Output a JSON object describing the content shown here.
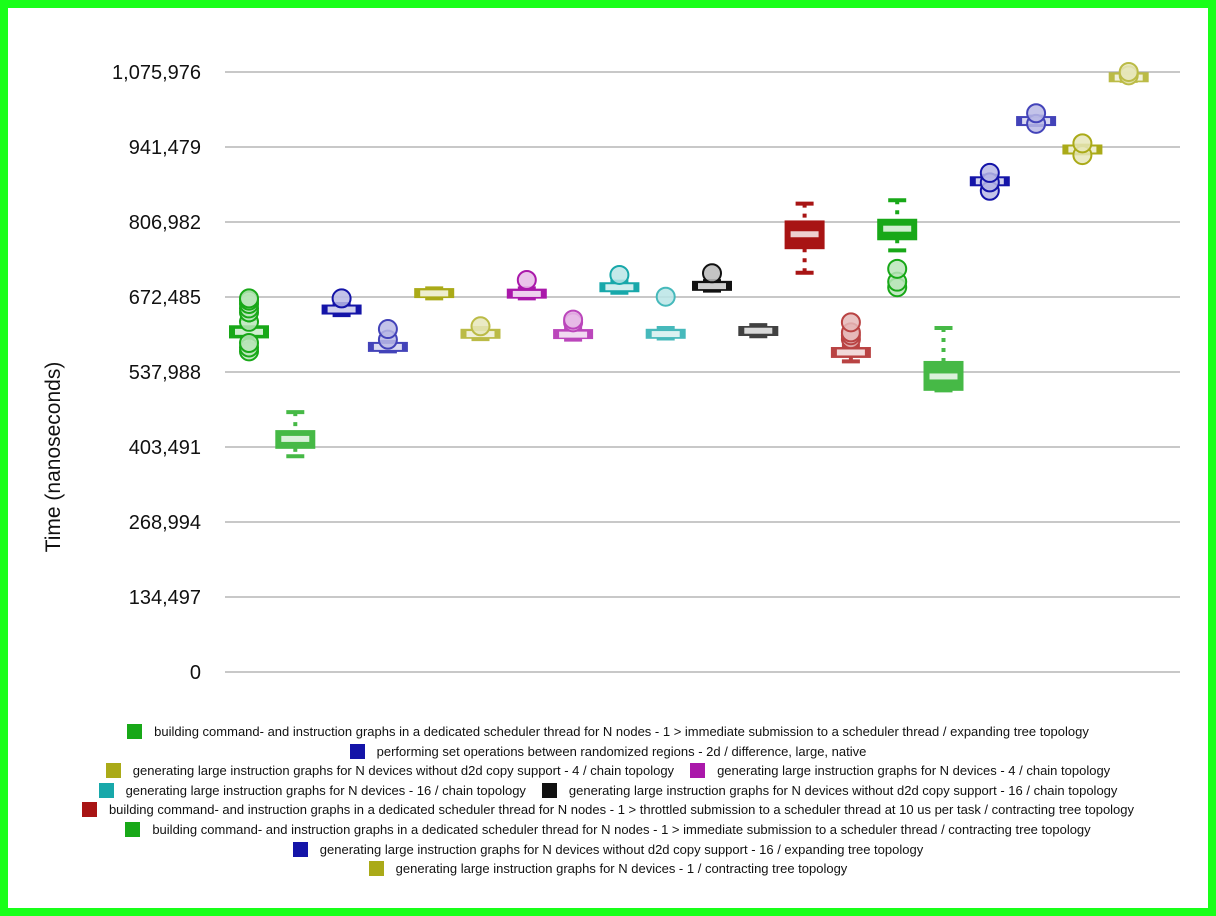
{
  "chart_data": {
    "type": "box",
    "ylabel": "Time (nanoseconds)",
    "ylim": [
      0,
      1075976
    ],
    "y_ticks": [
      {
        "value": 0,
        "label": "0"
      },
      {
        "value": 134497,
        "label": "134,497"
      },
      {
        "value": 268994,
        "label": "268,994"
      },
      {
        "value": 403491,
        "label": "403,491"
      },
      {
        "value": 537988,
        "label": "537,988"
      },
      {
        "value": 672485,
        "label": "672,485"
      },
      {
        "value": 806982,
        "label": "806,982"
      },
      {
        "value": 941479,
        "label": "941,479"
      },
      {
        "value": 1075976,
        "label": "1,075,976"
      }
    ],
    "grid": true,
    "legend_position": "bottom",
    "legend_rows": [
      [
        0
      ],
      [
        1
      ],
      [
        2,
        3
      ],
      [
        4,
        5
      ],
      [
        6
      ],
      [
        7
      ],
      [
        8
      ],
      [
        9
      ]
    ],
    "series": [
      {
        "name": "building command- and instruction graphs in a dedicated scheduler thread for N nodes - 1 > immediate submission to a scheduler thread / expanding tree topology",
        "color": "#18a818"
      },
      {
        "name": "performing set operations between randomized regions - 2d / difference, large, native",
        "color": "#1414a8"
      },
      {
        "name": "generating large instruction graphs for N devices without d2d copy support - 4 / chain topology",
        "color": "#aaaa18"
      },
      {
        "name": "generating large instruction graphs for N devices - 4 / chain topology",
        "color": "#aa18aa"
      },
      {
        "name": "generating large instruction graphs for N devices - 16 / chain topology",
        "color": "#18a8aa"
      },
      {
        "name": "generating large instruction graphs for N devices without d2d copy support - 16 / chain topology",
        "color": "#111111"
      },
      {
        "name": "building command- and instruction graphs in a dedicated scheduler thread for N nodes - 1 > throttled submission to a scheduler thread at 10 us per task / contracting tree topology",
        "color": "#a81414"
      },
      {
        "name": "building command- and instruction graphs in a dedicated scheduler thread for N nodes - 1 > immediate submission to a scheduler thread / contracting tree topology",
        "color": "#18a818"
      },
      {
        "name": "generating large instruction graphs for N devices without d2d copy support - 16 / expanding tree topology",
        "color": "#1414a8"
      },
      {
        "name": "generating large instruction graphs for N devices - 1 / contracting tree topology",
        "color": "#aaaa18"
      }
    ],
    "boxes": [
      {
        "series": 0,
        "light": false,
        "min": 588000,
        "q1": 600000,
        "median": 610000,
        "q3": 620000,
        "max": 633000,
        "outliers": [
          575000,
          582000,
          590000,
          628000,
          645000,
          652000,
          660000,
          666000,
          670000
        ]
      },
      {
        "series": 0,
        "light": true,
        "min": 387000,
        "q1": 402000,
        "median": 418000,
        "q3": 432000,
        "max": 466000,
        "outliers": []
      },
      {
        "series": 1,
        "light": false,
        "min": 640000,
        "q1": 645000,
        "median": 650000,
        "q3": 655000,
        "max": 660000,
        "outliers": [
          670000
        ]
      },
      {
        "series": 1,
        "light": true,
        "min": 575000,
        "q1": 578000,
        "median": 583000,
        "q3": 588000,
        "max": 592000,
        "outliers": [
          596000,
          615000
        ]
      },
      {
        "series": 2,
        "light": false,
        "min": 670000,
        "q1": 675000,
        "median": 679000,
        "q3": 684000,
        "max": 688000,
        "outliers": []
      },
      {
        "series": 2,
        "light": true,
        "min": 597000,
        "q1": 601000,
        "median": 606000,
        "q3": 612000,
        "max": 617000,
        "outliers": [
          620000
        ]
      },
      {
        "series": 3,
        "light": false,
        "min": 670000,
        "q1": 673000,
        "median": 678000,
        "q3": 684000,
        "max": 688000,
        "outliers": [
          703000
        ]
      },
      {
        "series": 3,
        "light": true,
        "min": 596000,
        "q1": 600000,
        "median": 605000,
        "q3": 612000,
        "max": 617000,
        "outliers": [
          627000,
          632000
        ]
      },
      {
        "series": 4,
        "light": false,
        "min": 680000,
        "q1": 684000,
        "median": 690000,
        "q3": 696000,
        "max": 700000,
        "outliers": [
          712000
        ]
      },
      {
        "series": 4,
        "light": true,
        "min": 598000,
        "q1": 601000,
        "median": 606000,
        "q3": 612000,
        "max": 617000,
        "outliers": [
          673000
        ]
      },
      {
        "series": 5,
        "light": false,
        "min": 684000,
        "q1": 688000,
        "median": 692000,
        "q3": 697000,
        "max": 701000,
        "outliers": [
          715000
        ]
      },
      {
        "series": 5,
        "light": true,
        "min": 602000,
        "q1": 606000,
        "median": 612000,
        "q3": 617000,
        "max": 622000,
        "outliers": []
      },
      {
        "series": 6,
        "light": false,
        "min": 716000,
        "q1": 760000,
        "median": 785000,
        "q3": 808000,
        "max": 840000,
        "outliers": []
      },
      {
        "series": 6,
        "light": true,
        "min": 557000,
        "q1": 565000,
        "median": 573000,
        "q3": 581000,
        "max": 585000,
        "outliers": [
          597000,
          604000,
          609000,
          627000
        ]
      },
      {
        "series": 7,
        "light": false,
        "min": 756000,
        "q1": 776000,
        "median": 795000,
        "q3": 811000,
        "max": 846000,
        "outliers": [
          690000,
          700000,
          723000
        ]
      },
      {
        "series": 7,
        "light": true,
        "min": 505000,
        "q1": 506000,
        "median": 530000,
        "q3": 556000,
        "max": 617000,
        "outliers": []
      },
      {
        "series": 8,
        "light": false,
        "min": 870000,
        "q1": 874000,
        "median": 880000,
        "q3": 886000,
        "max": 890000,
        "outliers": [
          863000,
          878000,
          895000
        ]
      },
      {
        "series": 8,
        "light": true,
        "min": 981000,
        "q1": 984000,
        "median": 988000,
        "q3": 992000,
        "max": 996000,
        "outliers": [
          983000,
          1002000
        ]
      },
      {
        "series": 9,
        "light": false,
        "min": 930000,
        "q1": 933000,
        "median": 937000,
        "q3": 941000,
        "max": 944000,
        "outliers": [
          927000,
          948000
        ]
      },
      {
        "series": 9,
        "light": true,
        "min": 1060000,
        "q1": 1063000,
        "median": 1066000,
        "q3": 1070000,
        "max": 1073000,
        "outliers": [
          1070000,
          1076000
        ]
      }
    ]
  }
}
